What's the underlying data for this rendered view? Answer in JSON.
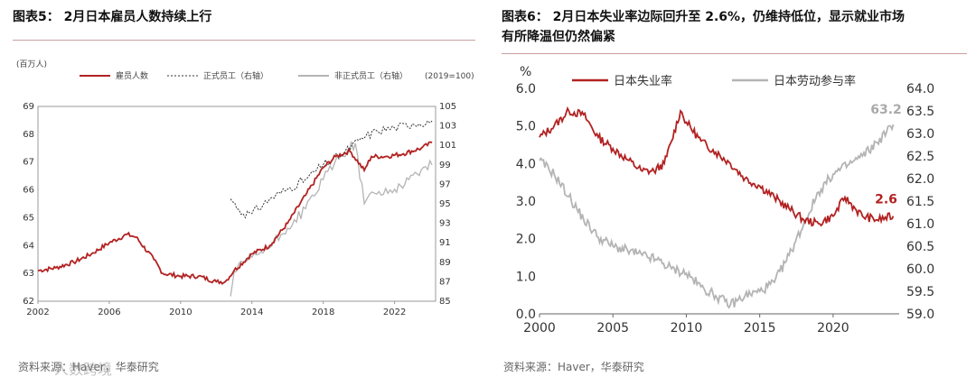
{
  "left_panel": {
    "title": "图表5： 2月日本雇员人数持续上行",
    "source": "资料来源：Haver，华泰研究",
    "watermark": "人数跨境"
  },
  "right_panel": {
    "title_line1": "图表6： 2月日本失业率边际回升至 2.6%，仍维持低位，显示就业市场",
    "title_line2": "有所降温但仍然偏紧",
    "source": "资料来源：Haver，华泰研究"
  },
  "colors": {
    "red": "#b22222",
    "gray": "#b4b4b4",
    "black": "#333333"
  },
  "chart_data": [
    {
      "type": "line",
      "title": "2月日本雇员人数持续上行",
      "ylabel": "(百万人)",
      "ylabel_right": "(2019=100)",
      "x_ticks": [
        "2002",
        "2006",
        "2010",
        "2014",
        "2018",
        "2022"
      ],
      "xlim": [
        2002,
        2024.3
      ],
      "ylim": [
        62,
        69
      ],
      "y2lim": [
        85,
        105
      ],
      "y_ticks": [
        62,
        63,
        64,
        65,
        66,
        67,
        68,
        69
      ],
      "y2_ticks": [
        85,
        87,
        89,
        91,
        93,
        95,
        97,
        99,
        101,
        103,
        105
      ],
      "legend_placement": "top",
      "series": [
        {
          "name": "雇员人数",
          "axis": "left",
          "style": "solid",
          "color": "#b22222",
          "x": [
            2002.0,
            2003.0,
            2004.0,
            2005.0,
            2006.0,
            2007.0,
            2007.5,
            2008.5,
            2009.0,
            2010.0,
            2011.0,
            2012.0,
            2012.5,
            2013.0,
            2014.0,
            2015.0,
            2016.0,
            2017.0,
            2018.0,
            2018.7,
            2019.5,
            2020.3,
            2020.7,
            2021.5,
            2022.5,
            2023.5,
            2024.1
          ],
          "y": [
            63.1,
            63.2,
            63.4,
            63.7,
            64.1,
            64.4,
            64.3,
            63.5,
            63.0,
            62.9,
            62.9,
            62.7,
            62.7,
            63.1,
            63.7,
            64.0,
            64.8,
            65.8,
            66.8,
            67.2,
            67.4,
            66.7,
            67.2,
            67.2,
            67.3,
            67.5,
            67.7
          ]
        },
        {
          "name": "正式员工（右轴）",
          "axis": "right",
          "style": "dashed",
          "color": "#333333",
          "x": [
            2012.8,
            2013.5,
            2014.0,
            2015.0,
            2016.0,
            2017.0,
            2018.0,
            2019.0,
            2020.0,
            2021.0,
            2022.0,
            2023.0,
            2024.1
          ],
          "y": [
            95.5,
            94.0,
            94.0,
            95.5,
            96.5,
            97.5,
            99.0,
            100.0,
            101.5,
            102.5,
            102.8,
            103.2,
            103.5
          ]
        },
        {
          "name": "非正式员工（右轴）",
          "axis": "right",
          "style": "solid",
          "color": "#b4b4b4",
          "x": [
            2012.8,
            2013.0,
            2014.0,
            2015.0,
            2016.0,
            2017.0,
            2018.0,
            2019.0,
            2019.8,
            2020.3,
            2020.6,
            2021.0,
            2022.0,
            2022.8,
            2023.5,
            2024.1
          ],
          "y": [
            85.5,
            88.0,
            89.5,
            90.5,
            92.5,
            94.5,
            97.5,
            100.0,
            101.2,
            95.0,
            96.0,
            96.0,
            96.5,
            97.5,
            98.5,
            99.0
          ]
        }
      ]
    },
    {
      "type": "line",
      "title": "2月日本失业率边际回升至 2.6%，仍维持低位，显示就业市场有所降温但仍然偏紧",
      "ylabel": "%",
      "x_ticks": [
        "2000",
        "2005",
        "2010",
        "2015",
        "2020"
      ],
      "xlim": [
        2000,
        2024.5
      ],
      "ylim": [
        0.0,
        6.0
      ],
      "y2lim": [
        59.0,
        64.0
      ],
      "y_ticks": [
        "0.0",
        "1.0",
        "2.0",
        "3.0",
        "4.0",
        "5.0",
        "6.0"
      ],
      "y2_ticks": [
        "59.0",
        "59.5",
        "60.0",
        "60.5",
        "61.0",
        "61.5",
        "62.0",
        "62.5",
        "63.0",
        "63.5",
        "64.0"
      ],
      "legend_placement": "top",
      "annotations": [
        {
          "text": "2.6",
          "series": "日本失业率"
        },
        {
          "text": "63.2",
          "series": "日本劳动参与率"
        }
      ],
      "series": [
        {
          "name": "日本失业率",
          "axis": "left",
          "color": "#b22222",
          "x": [
            2000.0,
            2001.0,
            2002.0,
            2003.0,
            2004.0,
            2005.0,
            2006.0,
            2007.0,
            2007.8,
            2008.5,
            2009.0,
            2009.6,
            2010.0,
            2011.0,
            2012.0,
            2013.0,
            2014.0,
            2015.0,
            2016.0,
            2017.0,
            2018.0,
            2019.0,
            2020.0,
            2020.8,
            2021.5,
            2022.0,
            2023.0,
            2024.1
          ],
          "y": [
            4.7,
            5.0,
            5.4,
            5.3,
            4.7,
            4.4,
            4.1,
            3.8,
            3.8,
            4.0,
            4.6,
            5.4,
            5.1,
            4.6,
            4.3,
            4.0,
            3.6,
            3.4,
            3.1,
            2.8,
            2.5,
            2.4,
            2.6,
            3.1,
            2.8,
            2.6,
            2.5,
            2.6
          ]
        },
        {
          "name": "日本劳动参与率",
          "axis": "right",
          "color": "#b4b4b4",
          "x": [
            2000.0,
            2001.0,
            2002.0,
            2003.0,
            2004.0,
            2005.0,
            2006.0,
            2007.0,
            2008.0,
            2009.0,
            2010.0,
            2011.0,
            2012.0,
            2013.0,
            2014.0,
            2015.0,
            2016.0,
            2017.0,
            2018.0,
            2019.0,
            2020.0,
            2021.0,
            2022.0,
            2023.0,
            2024.1
          ],
          "y": [
            62.4,
            62.1,
            61.6,
            61.1,
            60.7,
            60.5,
            60.4,
            60.3,
            60.2,
            60.0,
            59.9,
            59.6,
            59.4,
            59.2,
            59.4,
            59.5,
            59.7,
            60.3,
            61.0,
            61.7,
            62.1,
            62.3,
            62.5,
            62.8,
            63.2
          ]
        }
      ]
    }
  ]
}
